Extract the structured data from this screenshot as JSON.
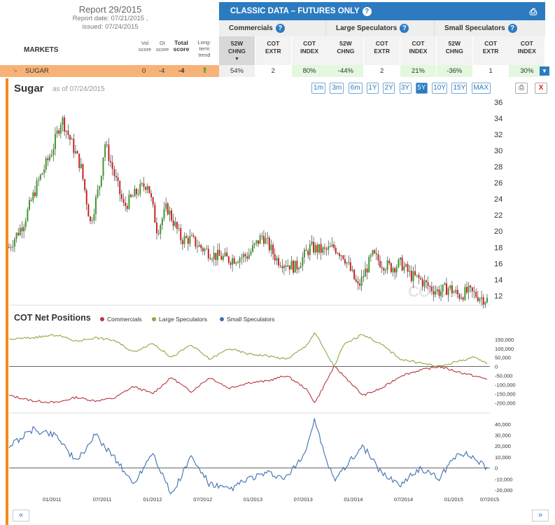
{
  "report": {
    "title": "Report 29/2015",
    "report_date": "Report date: 07/21/2015 ,",
    "issued": "issued: 07/24/2015"
  },
  "classic": {
    "title": "CLASSIC DATA – FUTURES ONLY",
    "help": "?",
    "print": "⎙"
  },
  "groups": [
    "Commercials",
    "Large Speculators",
    "Small Speculators"
  ],
  "columns": [
    {
      "l1": "52W",
      "l2": "CHNG",
      "active": true
    },
    {
      "l1": "COT",
      "l2": "EXTR"
    },
    {
      "l1": "COT",
      "l2": "INDEX"
    },
    {
      "l1": "52W",
      "l2": "CHNG"
    },
    {
      "l1": "COT",
      "l2": "EXTR"
    },
    {
      "l1": "COT",
      "l2": "INDEX"
    },
    {
      "l1": "52W",
      "l2": "CHNG"
    },
    {
      "l1": "COT",
      "l2": "EXTR"
    },
    {
      "l1": "COT",
      "l2": "INDEX"
    }
  ],
  "markets_label": "MARKETS",
  "score_heads": {
    "vol": "Vol score",
    "oi": "OI score",
    "total": "Total score",
    "trend": "Long-term trend"
  },
  "row": {
    "market": "SUGAR",
    "vol": "0",
    "oi": "-4",
    "total": "-4",
    "trend_icon": "up-arrow",
    "cells": [
      "54%",
      "2",
      "80%",
      "-44%",
      "2",
      "21%",
      "-36%",
      "1",
      "30%"
    ]
  },
  "chart": {
    "title": "Sugar",
    "as_of": "as of 07/24/2015",
    "ranges": [
      "1m",
      "3m",
      "6m",
      "1Y",
      "2Y",
      "3Y",
      "5Y",
      "10Y",
      "15Y",
      "MAX"
    ],
    "active_range": "5Y",
    "close": "X",
    "watermark_a": "COT",
    "watermark_b": "BASE"
  },
  "cot": {
    "title": "COT Net Positions",
    "legend": [
      "Commercials",
      "Large Speculators",
      "Small Speculators"
    ],
    "colors": {
      "commercials": "#b5373c",
      "large": "#8aab3f",
      "small": "#3f6fb0",
      "up": "#3a9a2a",
      "down": "#cc2222"
    }
  },
  "nav": {
    "prev": "«",
    "next": "»"
  },
  "chart_data": [
    {
      "type": "candlestick",
      "title": "Sugar",
      "ylim": [
        11,
        36.5
      ],
      "yticks": [
        12,
        14,
        16,
        18,
        20,
        22,
        24,
        26,
        28,
        30,
        32,
        34,
        36
      ],
      "xticks": [
        "01/2011",
        "07/2011",
        "01/2012",
        "07/2012",
        "01/2013",
        "07/2013",
        "01/2014",
        "07/2014",
        "01/2015",
        "07/2015"
      ],
      "x": [
        0,
        0.03,
        0.06,
        0.09,
        0.11,
        0.13,
        0.15,
        0.17,
        0.19,
        0.2,
        0.22,
        0.24,
        0.27,
        0.29,
        0.31,
        0.33,
        0.36,
        0.38,
        0.4,
        0.43,
        0.46,
        0.5,
        0.53,
        0.56,
        0.6,
        0.63,
        0.66,
        0.68,
        0.7,
        0.73,
        0.76,
        0.78,
        0.8,
        0.82,
        0.84,
        0.86,
        0.88,
        0.9,
        0.92,
        0.94,
        0.96,
        0.98,
        1.0
      ],
      "close": [
        18,
        21,
        26,
        30,
        34,
        31,
        28,
        21,
        26,
        31,
        27,
        23,
        25,
        26,
        20,
        23,
        19,
        19,
        18,
        17,
        16.5,
        17,
        19.5,
        16.5,
        15.5,
        18,
        17.5,
        18,
        17,
        13,
        17,
        16,
        15.5,
        16,
        14.5,
        14,
        13,
        12.5,
        13,
        12,
        12.5,
        12,
        11.5
      ]
    },
    {
      "type": "line",
      "title": "COT Net Positions",
      "ylim": [
        -230000,
        200000
      ],
      "yticks": [
        150000,
        100000,
        50000,
        0,
        -50000,
        -100000,
        -150000,
        -200000
      ],
      "yticklabels": [
        "150,000",
        "100,000",
        "50,000",
        "0",
        "-50,000",
        "-100,000",
        "-150,000",
        "-200,000"
      ],
      "series": [
        {
          "name": "Commercials",
          "x": [
            0,
            0.05,
            0.1,
            0.14,
            0.18,
            0.22,
            0.26,
            0.3,
            0.34,
            0.38,
            0.42,
            0.46,
            0.5,
            0.54,
            0.58,
            0.62,
            0.64,
            0.66,
            0.68,
            0.7,
            0.74,
            0.78,
            0.82,
            0.86,
            0.9,
            0.94,
            0.97,
            1.0
          ],
          "y": [
            -160000,
            -190000,
            -200000,
            -170000,
            -190000,
            -175000,
            -110000,
            -150000,
            -60000,
            -140000,
            -60000,
            -120000,
            -90000,
            -80000,
            -50000,
            -120000,
            -200000,
            -100000,
            0,
            -50000,
            -160000,
            -120000,
            -50000,
            -20000,
            0,
            -30000,
            -50000,
            -70000
          ]
        },
        {
          "name": "Large Speculators",
          "x": [
            0,
            0.05,
            0.1,
            0.14,
            0.18,
            0.22,
            0.26,
            0.3,
            0.34,
            0.38,
            0.42,
            0.46,
            0.5,
            0.54,
            0.58,
            0.62,
            0.64,
            0.66,
            0.68,
            0.7,
            0.74,
            0.78,
            0.82,
            0.86,
            0.9,
            0.94,
            0.97,
            1.0
          ],
          "y": [
            150000,
            160000,
            175000,
            140000,
            160000,
            145000,
            80000,
            130000,
            50000,
            120000,
            40000,
            100000,
            70000,
            60000,
            40000,
            110000,
            190000,
            90000,
            0,
            120000,
            180000,
            120000,
            40000,
            20000,
            0,
            30000,
            50000,
            20000
          ]
        },
        {
          "name": "Small Speculators",
          "x": [
            0,
            0.05,
            0.1,
            0.14,
            0.18,
            0.22,
            0.26,
            0.3,
            0.34,
            0.38,
            0.42,
            0.46,
            0.5,
            0.54,
            0.58,
            0.62,
            0.64,
            0.66,
            0.68,
            0.7,
            0.74,
            0.78,
            0.82,
            0.86,
            0.9,
            0.94,
            0.97,
            1.0
          ],
          "y": [
            20000,
            35000,
            30000,
            5000,
            30000,
            10000,
            -15000,
            15000,
            -25000,
            10000,
            -15000,
            -20000,
            -10000,
            -5000,
            -10000,
            15000,
            45000,
            10000,
            -10000,
            0,
            20000,
            -5000,
            -15000,
            0,
            -10000,
            15000,
            10000,
            0
          ]
        }
      ],
      "small_ylim": [
        -20000,
        45000
      ],
      "small_yticks": [
        40000,
        30000,
        20000,
        10000,
        0,
        -10000,
        -20000
      ],
      "small_yticklabels": [
        "40,000",
        "30,000",
        "20,000",
        "10,000",
        "0",
        "-10,000",
        "-20,000"
      ]
    }
  ]
}
